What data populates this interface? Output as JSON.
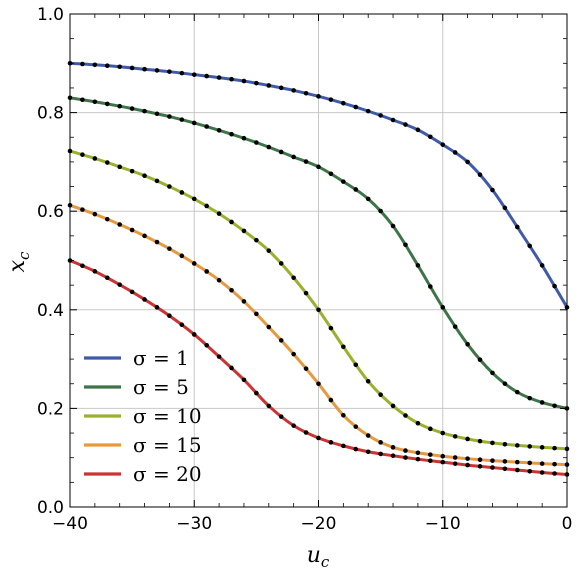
{
  "chart_data": {
    "type": "line",
    "title": "",
    "xlabel": {
      "main": "u",
      "sub": "c"
    },
    "ylabel": {
      "main": "x",
      "sub": "c"
    },
    "xlim": [
      -40,
      0
    ],
    "ylim": [
      0.0,
      1.0
    ],
    "xticks": [
      "-40",
      "-30",
      "-20",
      "-10",
      "0"
    ],
    "yticks": [
      "0.0",
      "0.2",
      "0.4",
      "0.6",
      "0.8",
      "1.0"
    ],
    "grid": true,
    "legend": "bottom-left",
    "markers": "black dots on every curve",
    "x": [
      -40,
      -38,
      -36,
      -34,
      -32,
      -30,
      -28,
      -26,
      -24,
      -22,
      -20,
      -18,
      -16,
      -14,
      -12,
      -10,
      -8,
      -6,
      -4,
      -2,
      0
    ],
    "series": [
      {
        "name": "σ = 1",
        "color": "#3f5aa8",
        "values": [
          0.9,
          0.897,
          0.893,
          0.888,
          0.883,
          0.877,
          0.871,
          0.864,
          0.855,
          0.845,
          0.833,
          0.819,
          0.803,
          0.785,
          0.765,
          0.735,
          0.7,
          0.643,
          0.568,
          0.49,
          0.405
        ]
      },
      {
        "name": "σ = 5",
        "color": "#3d7548",
        "values": [
          0.83,
          0.822,
          0.813,
          0.803,
          0.792,
          0.779,
          0.764,
          0.748,
          0.73,
          0.71,
          0.69,
          0.66,
          0.625,
          0.57,
          0.49,
          0.405,
          0.33,
          0.272,
          0.233,
          0.212,
          0.2
        ]
      },
      {
        "name": "σ = 10",
        "color": "#9ab130",
        "values": [
          0.722,
          0.707,
          0.69,
          0.672,
          0.65,
          0.625,
          0.595,
          0.56,
          0.52,
          0.465,
          0.4,
          0.325,
          0.255,
          0.205,
          0.17,
          0.15,
          0.138,
          0.13,
          0.125,
          0.121,
          0.118
        ]
      },
      {
        "name": "σ = 15",
        "color": "#e7993f",
        "values": [
          0.612,
          0.594,
          0.573,
          0.55,
          0.524,
          0.494,
          0.46,
          0.417,
          0.365,
          0.31,
          0.25,
          0.186,
          0.145,
          0.121,
          0.11,
          0.103,
          0.098,
          0.094,
          0.091,
          0.088,
          0.086
        ]
      },
      {
        "name": "σ = 20",
        "color": "#cc3333",
        "values": [
          0.5,
          0.478,
          0.451,
          0.421,
          0.388,
          0.35,
          0.305,
          0.258,
          0.205,
          0.165,
          0.14,
          0.124,
          0.112,
          0.104,
          0.097,
          0.091,
          0.085,
          0.08,
          0.075,
          0.07,
          0.066
        ]
      }
    ]
  }
}
